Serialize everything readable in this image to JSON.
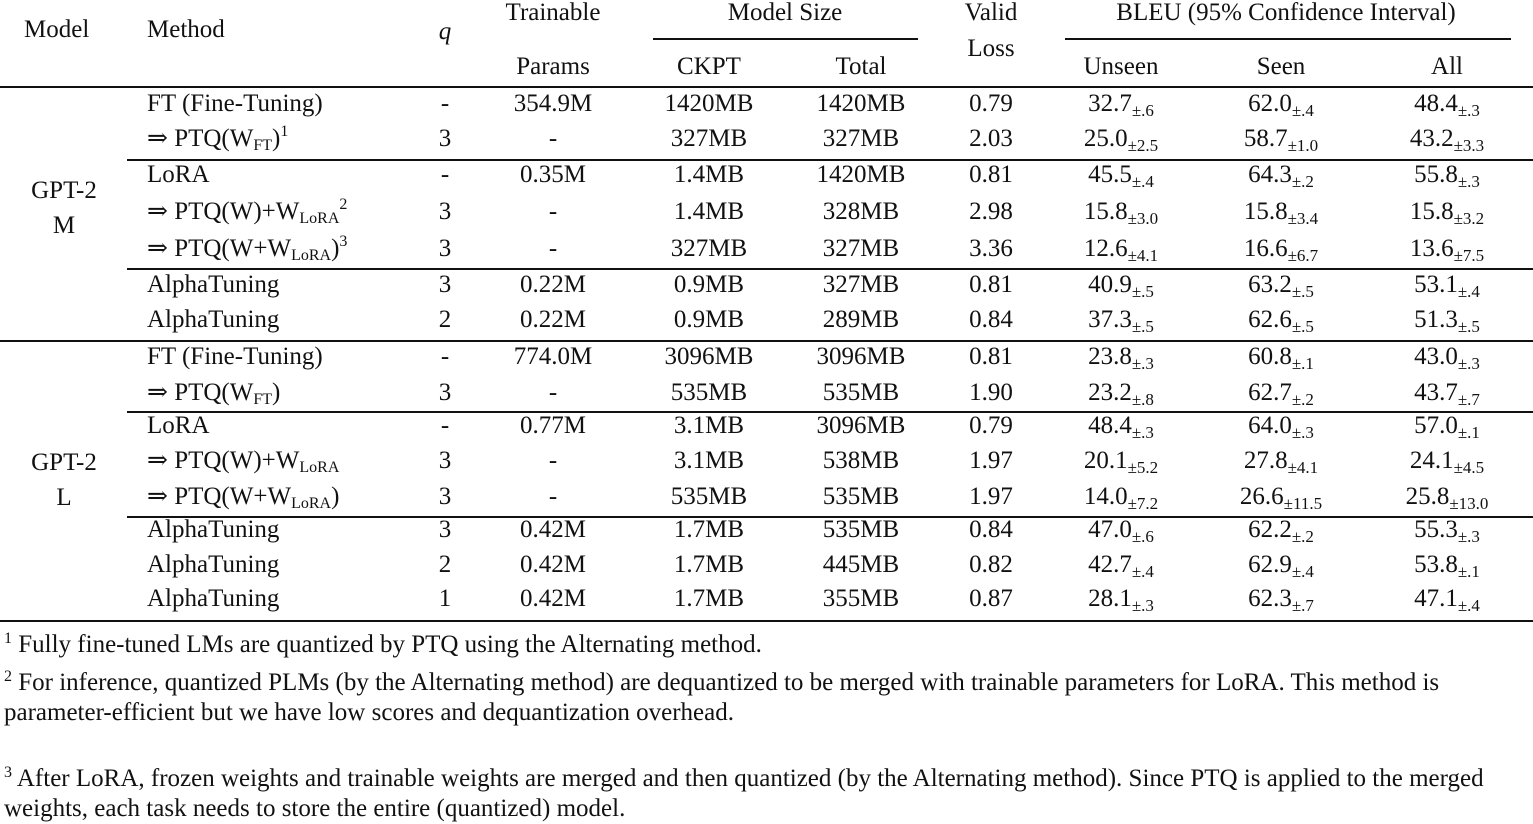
{
  "headers": {
    "model": "Model",
    "method": "Method",
    "q": "q",
    "trainable_top": "Trainable",
    "trainable_bottom": "Params",
    "model_size": "Model Size",
    "ckpt": "CKPT",
    "total": "Total",
    "valid_top": "Valid",
    "valid_bottom": "Loss",
    "bleu": "BLEU (95% Confidence Interval)",
    "unseen": "Unseen",
    "seen": "Seen",
    "all": "All"
  },
  "models": [
    {
      "line1": "GPT-2",
      "line2": "M"
    },
    {
      "line1": "GPT-2",
      "line2": "L"
    }
  ],
  "rows": [
    {
      "pre": "",
      "m": "FT (Fine-Tuning)",
      "sub": "",
      "post": "",
      "sup": "",
      "q": "-",
      "params": "354.9M",
      "ckpt": "1420MB",
      "total": "1420MB",
      "loss": "0.79",
      "u": "32.7",
      "uci": "±.6",
      "s": "62.0",
      "sci": "±.4",
      "a": "48.4",
      "aci": "±.3"
    },
    {
      "pre": "⇒ ",
      "m": "PTQ(W",
      "sub": "FT",
      "post": ")",
      "sup": "1",
      "q": "3",
      "params": "-",
      "ckpt": "327MB",
      "total": "327MB",
      "loss": "2.03",
      "u": "25.0",
      "uci": "±2.5",
      "s": "58.7",
      "sci": "±1.0",
      "a": "43.2",
      "aci": "±3.3"
    },
    {
      "pre": "",
      "m": "LoRA",
      "sub": "",
      "post": "",
      "sup": "",
      "q": "-",
      "params": "0.35M",
      "ckpt": "1.4MB",
      "total": "1420MB",
      "loss": "0.81",
      "u": "45.5",
      "uci": "±.4",
      "s": "64.3",
      "sci": "±.2",
      "a": "55.8",
      "aci": "±.3"
    },
    {
      "pre": "⇒ ",
      "m": "PTQ(W)+W",
      "sub": "LoRA",
      "post": "",
      "sup": "2",
      "q": "3",
      "params": "-",
      "ckpt": "1.4MB",
      "total": "328MB",
      "loss": "2.98",
      "u": "15.8",
      "uci": "±3.0",
      "s": "15.8",
      "sci": "±3.4",
      "a": "15.8",
      "aci": "±3.2"
    },
    {
      "pre": "⇒ ",
      "m": "PTQ(W+W",
      "sub": "LoRA",
      "post": ")",
      "sup": "3",
      "q": "3",
      "params": "-",
      "ckpt": "327MB",
      "total": "327MB",
      "loss": "3.36",
      "u": "12.6",
      "uci": "±4.1",
      "s": "16.6",
      "sci": "±6.7",
      "a": "13.6",
      "aci": "±7.5"
    },
    {
      "pre": "",
      "m": "AlphaTuning",
      "sub": "",
      "post": "",
      "sup": "",
      "q": "3",
      "params": "0.22M",
      "ckpt": "0.9MB",
      "total": "327MB",
      "loss": "0.81",
      "u": "40.9",
      "uci": "±.5",
      "s": "63.2",
      "sci": "±.5",
      "a": "53.1",
      "aci": "±.4"
    },
    {
      "pre": "",
      "m": "AlphaTuning",
      "sub": "",
      "post": "",
      "sup": "",
      "q": "2",
      "params": "0.22M",
      "ckpt": "0.9MB",
      "total": "289MB",
      "loss": "0.84",
      "u": "37.3",
      "uci": "±.5",
      "s": "62.6",
      "sci": "±.5",
      "a": "51.3",
      "aci": "±.5"
    },
    {
      "pre": "",
      "m": "FT (Fine-Tuning)",
      "sub": "",
      "post": "",
      "sup": "",
      "q": "-",
      "params": "774.0M",
      "ckpt": "3096MB",
      "total": "3096MB",
      "loss": "0.81",
      "u": "23.8",
      "uci": "±.3",
      "s": "60.8",
      "sci": "±.1",
      "a": "43.0",
      "aci": "±.3"
    },
    {
      "pre": "⇒ ",
      "m": "PTQ(W",
      "sub": "FT",
      "post": ")",
      "sup": "",
      "q": "3",
      "params": "-",
      "ckpt": "535MB",
      "total": "535MB",
      "loss": "1.90",
      "u": "23.2",
      "uci": "±.8",
      "s": "62.7",
      "sci": "±.2",
      "a": "43.7",
      "aci": "±.7"
    },
    {
      "pre": "",
      "m": "LoRA",
      "sub": "",
      "post": "",
      "sup": "",
      "q": "-",
      "params": "0.77M",
      "ckpt": "3.1MB",
      "total": "3096MB",
      "loss": "0.79",
      "u": "48.4",
      "uci": "±.3",
      "s": "64.0",
      "sci": "±.3",
      "a": "57.0",
      "aci": "±.1"
    },
    {
      "pre": "⇒ ",
      "m": "PTQ(W)+W",
      "sub": "LoRA",
      "post": "",
      "sup": "",
      "q": "3",
      "params": "-",
      "ckpt": "3.1MB",
      "total": "538MB",
      "loss": "1.97",
      "u": "20.1",
      "uci": "±5.2",
      "s": "27.8",
      "sci": "±4.1",
      "a": "24.1",
      "aci": "±4.5"
    },
    {
      "pre": "⇒ ",
      "m": "PTQ(W+W",
      "sub": "LoRA",
      "post": ")",
      "sup": "",
      "q": "3",
      "params": "-",
      "ckpt": "535MB",
      "total": "535MB",
      "loss": "1.97",
      "u": "14.0",
      "uci": "±7.2",
      "s": "26.6",
      "sci": "±11.5",
      "a": "25.8",
      "aci": "±13.0"
    },
    {
      "pre": "",
      "m": "AlphaTuning",
      "sub": "",
      "post": "",
      "sup": "",
      "q": "3",
      "params": "0.42M",
      "ckpt": "1.7MB",
      "total": "535MB",
      "loss": "0.84",
      "u": "47.0",
      "uci": "±.6",
      "s": "62.2",
      "sci": "±.2",
      "a": "55.3",
      "aci": "±.3"
    },
    {
      "pre": "",
      "m": "AlphaTuning",
      "sub": "",
      "post": "",
      "sup": "",
      "q": "2",
      "params": "0.42M",
      "ckpt": "1.7MB",
      "total": "445MB",
      "loss": "0.82",
      "u": "42.7",
      "uci": "±.4",
      "s": "62.9",
      "sci": "±.4",
      "a": "53.8",
      "aci": "±.1"
    },
    {
      "pre": "",
      "m": "AlphaTuning",
      "sub": "",
      "post": "",
      "sup": "",
      "q": "1",
      "params": "0.42M",
      "ckpt": "1.7MB",
      "total": "355MB",
      "loss": "0.87",
      "u": "28.1",
      "uci": "±.3",
      "s": "62.3",
      "sci": "±.7",
      "a": "47.1",
      "aci": "±.4"
    }
  ],
  "footnotes": [
    {
      "mark": "1",
      "text": "Fully fine-tuned LMs are quantized by PTQ using the Alternating method."
    },
    {
      "mark": "2",
      "text": "For inference, quantized PLMs (by the Alternating method) are dequantized to be merged with trainable parameters for LoRA. This method is parameter-efficient but we have low scores and dequantization overhead."
    },
    {
      "mark": "3",
      "text": "After LoRA, frozen weights and trainable weights are merged and then quantized (by the Alternating method). Since PTQ is applied to the merged weights, each task needs to store the entire (quantized) model."
    }
  ]
}
